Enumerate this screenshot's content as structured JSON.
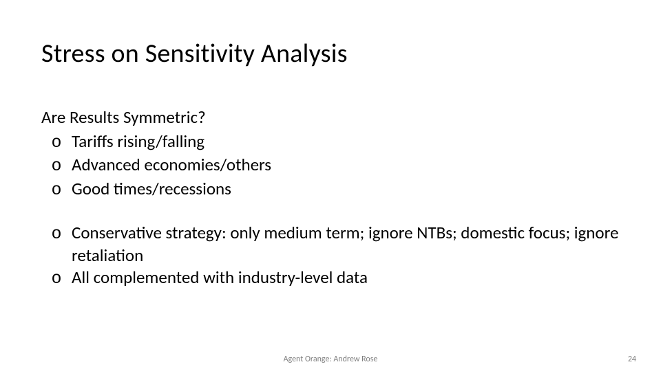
{
  "title": "Stress on Sensitivity Analysis",
  "subheading": "Are Results Symmetric?",
  "bullets_group1": [
    "Tariffs rising/falling",
    "Advanced economies/others",
    "Good times/recessions"
  ],
  "bullets_group2": [
    "Conservative strategy: only medium term; ignore NTBs; domestic focus; ignore retaliation",
    "All complemented with industry-level data"
  ],
  "bullet_marker": "o",
  "footer_center": "Agent Orange: Andrew Rose",
  "footer_page": "24",
  "colors": {
    "text": "#000000",
    "footer": "#7f7f7f",
    "background": "#ffffff"
  },
  "fontsize": {
    "title": 38,
    "body": 25,
    "footer": 12
  }
}
